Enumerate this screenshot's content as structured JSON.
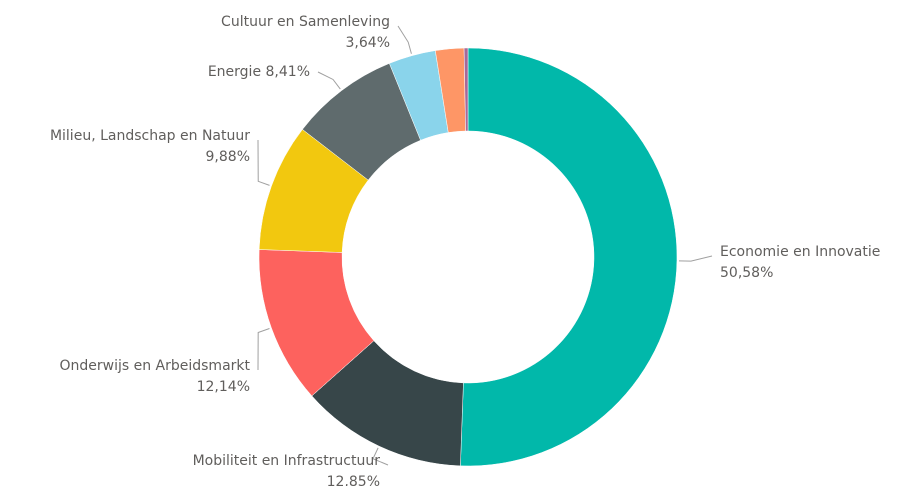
{
  "chart_data": {
    "type": "donut",
    "categories": [
      "Economie en Innovatie",
      "Mobiliteit en Infrastructuur",
      "Onderwijs en Arbeidsmarkt",
      "Milieu, Landschap en Natuur",
      "Energie",
      "Cultuur en Samenleving",
      null,
      null
    ],
    "values": [
      50.58,
      12.85,
      12.14,
      9.88,
      8.41,
      3.64,
      2.2,
      0.3
    ],
    "value_labels": [
      "50,58%",
      "12,85%",
      "12,14%",
      "9,88%",
      "8,41%",
      "3,64%",
      null,
      null
    ],
    "colors": [
      "#01B8AA",
      "#374649",
      "#FD625E",
      "#F2C80F",
      "#5F6B6D",
      "#8AD4EB",
      "#FE9666",
      "#A66999"
    ]
  }
}
